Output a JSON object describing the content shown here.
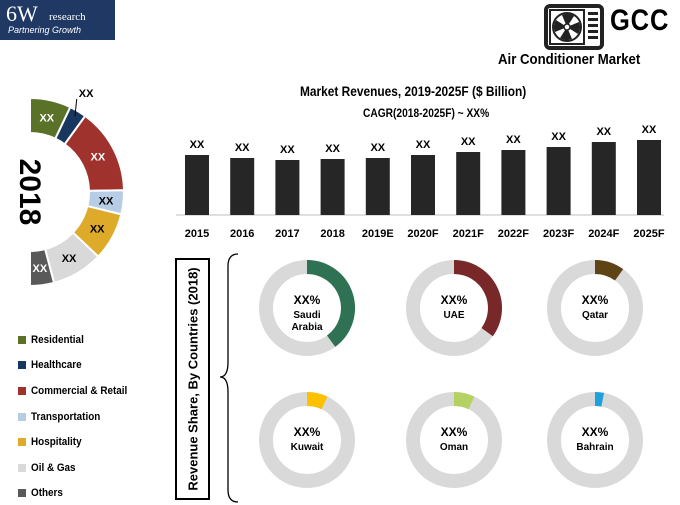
{
  "logo": {
    "big": "6W",
    "small": "research",
    "tagline": "Partnering Growth"
  },
  "brand": {
    "name": "GCC",
    "subtitle": "Air Conditioner Market",
    "icon": "air-conditioner-icon"
  },
  "revenue_chart": {
    "title": "Market Revenues, 2019-2025F ($ Billion)",
    "subtitle": "CAGR(2018-2025F) ~ XX%"
  },
  "donut_2018": {
    "year_label": "2018"
  },
  "share_section": {
    "label": "Revenue Share, By Countries (2018)"
  },
  "colors": {
    "bar": "#262626",
    "residential": "#5a7128",
    "healthcare": "#17375e",
    "commercial": "#a0322e",
    "transportation": "#b7cde5",
    "hospitality": "#deaa2a",
    "oil_gas": "#d9d9d9",
    "others": "#595959",
    "ring_bg": "#d9d9d9"
  },
  "chart_data": [
    {
      "type": "bar",
      "title": "Market Revenues, 2019-2025F ($ Billion)",
      "subtitle": "CAGR(2018-2025F) ~ XX%",
      "categories": [
        "2015",
        "2016",
        "2017",
        "2018",
        "2019E",
        "2020F",
        "2021F",
        "2022F",
        "2023F",
        "2024F",
        "2025F"
      ],
      "values": [
        60,
        57,
        55,
        56,
        57,
        60,
        63,
        65,
        68,
        73,
        75
      ],
      "data_labels": [
        "XX",
        "XX",
        "XX",
        "XX",
        "XX",
        "XX",
        "XX",
        "XX",
        "XX",
        "XX",
        "XX"
      ],
      "xlabel": "",
      "ylabel": "",
      "ylim": [
        0,
        100
      ],
      "grid": false
    },
    {
      "type": "pie",
      "title": "2018",
      "categories": [
        "Residential",
        "Healthcare",
        "Commercial & Retail",
        "Transportation",
        "Hospitality",
        "Oil & Gas",
        "Others"
      ],
      "values": [
        12,
        5,
        25,
        7,
        14,
        15,
        7
      ],
      "data_labels": [
        "XX",
        "XX",
        "XX",
        "XX",
        "XX",
        "XX",
        "XX"
      ],
      "colors": [
        "#5a7128",
        "#17375e",
        "#a0322e",
        "#b7cde5",
        "#deaa2a",
        "#d9d9d9",
        "#595959"
      ],
      "legend": "bottom-left"
    },
    {
      "type": "pie",
      "title": "Revenue Share, By Countries (2018)",
      "categories": [
        "Saudi Arabia",
        "UAE",
        "Qatar",
        "Kuwait",
        "Oman",
        "Bahrain"
      ],
      "values": [
        40,
        35,
        10,
        7,
        7,
        3
      ],
      "data_labels": [
        "XX%",
        "XX%",
        "XX%",
        "XX%",
        "XX%",
        "XX%"
      ],
      "colors": [
        "#2e7253",
        "#782828",
        "#5e4314",
        "#ffc000",
        "#b4d264",
        "#1ea0dc"
      ]
    }
  ]
}
